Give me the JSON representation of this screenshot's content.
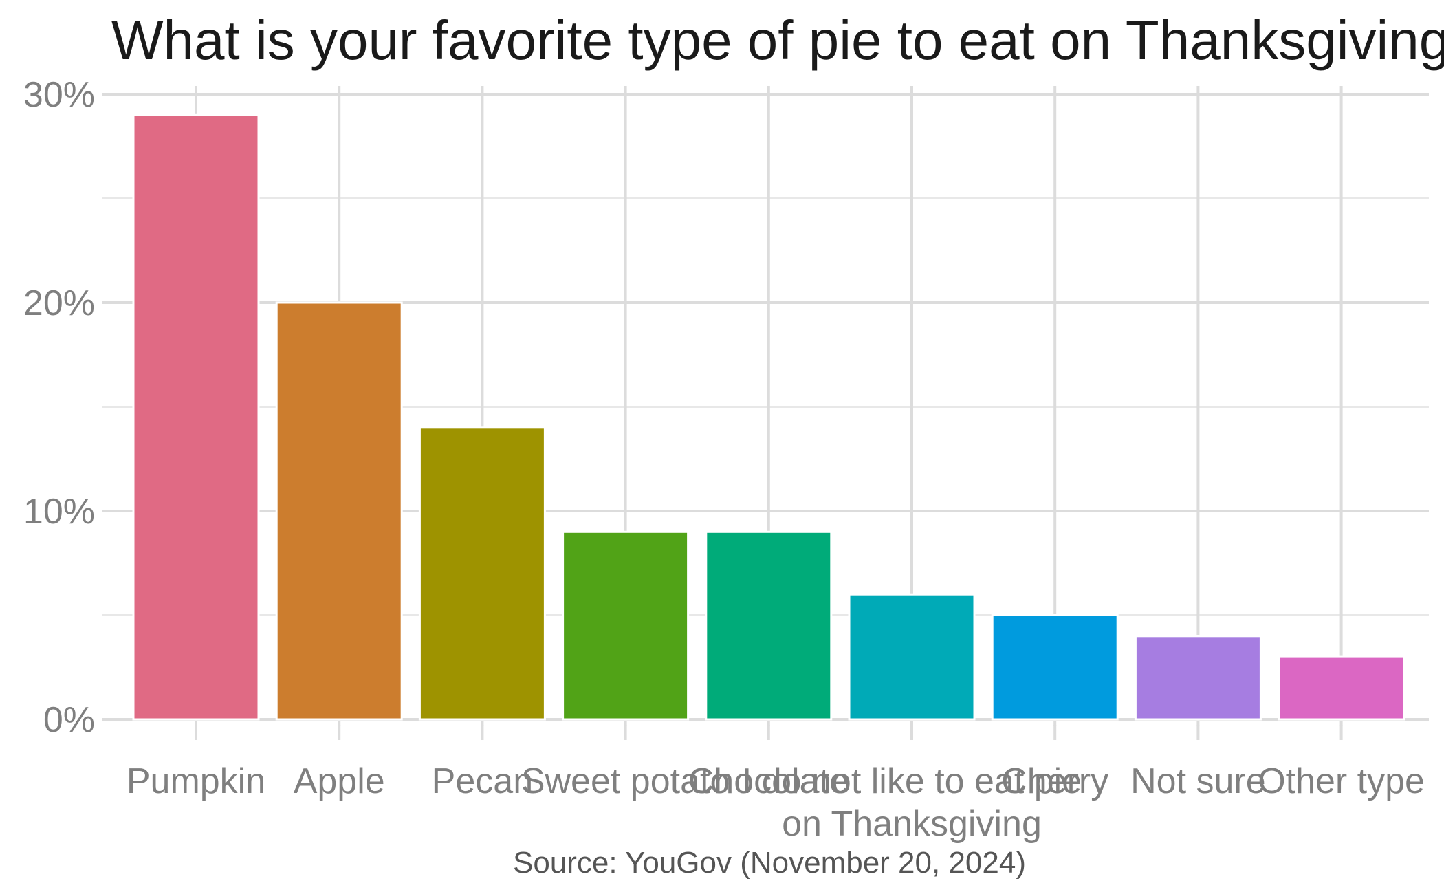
{
  "chart_data": {
    "type": "bar",
    "title": "What is your favorite type of pie to eat on Thanksgiving?",
    "caption": "Source: YouGov (November 20, 2024)",
    "xlabel": "",
    "ylabel": "",
    "categories": [
      "Pumpkin",
      "Apple",
      "Pecan",
      "Sweet potato",
      "Chocolate",
      "I do not like to eat pie on Thanksgiving",
      "Cherry",
      "Not sure",
      "Other type"
    ],
    "values": [
      29,
      20,
      14,
      9,
      9,
      6,
      5,
      4,
      3
    ],
    "y_unit": "%",
    "ylim": [
      0,
      30
    ],
    "y_ticks": [
      0,
      10,
      20,
      30
    ],
    "y_tick_labels": [
      "0%",
      "10%",
      "20%",
      "30%"
    ],
    "grid": true,
    "legend": "none",
    "colors": [
      "#E06A84",
      "#CC7D2E",
      "#9E9300",
      "#51A317",
      "#00AB79",
      "#00AAB7",
      "#009BDE",
      "#A67DE1",
      "#DB67C3"
    ]
  }
}
